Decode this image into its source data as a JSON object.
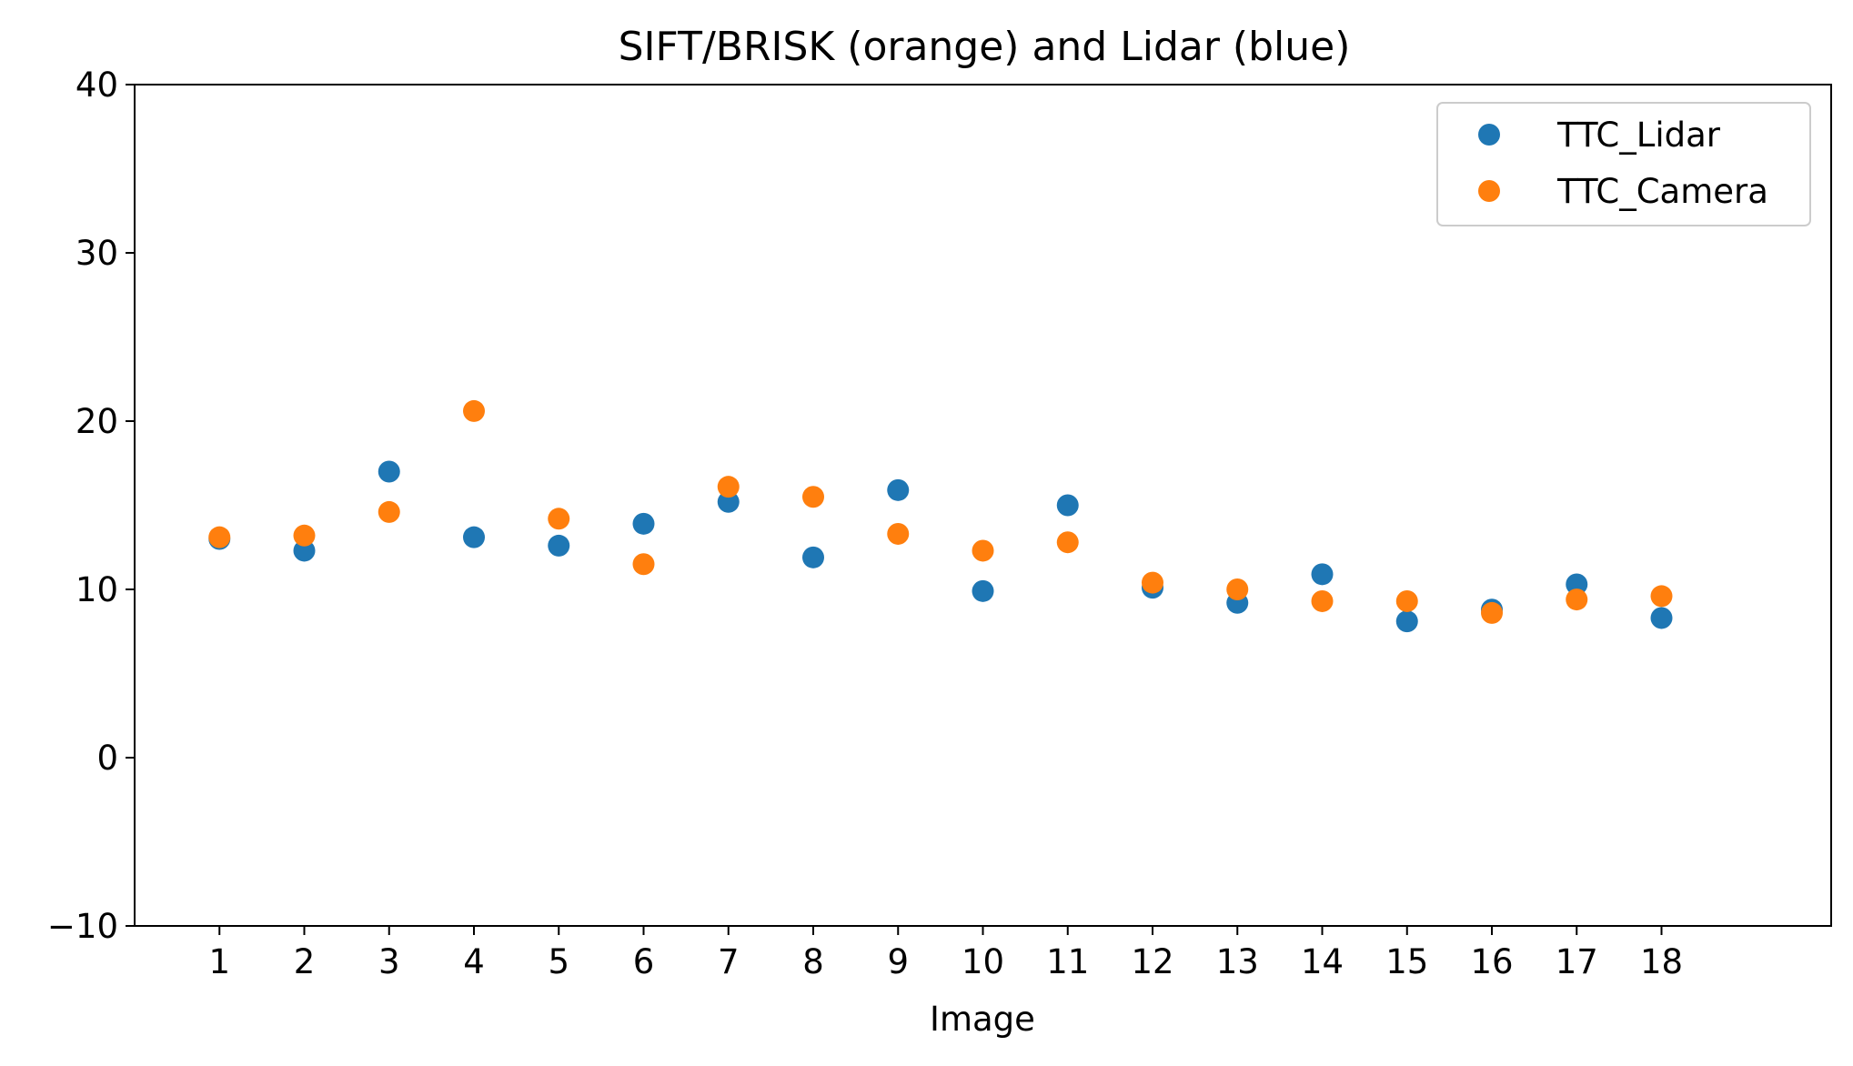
{
  "chart_data": {
    "type": "scatter",
    "title": "SIFT/BRISK (orange) and Lidar (blue)",
    "xlabel": "Image",
    "ylabel": "",
    "x": [
      1,
      2,
      3,
      4,
      5,
      6,
      7,
      8,
      9,
      10,
      11,
      12,
      13,
      14,
      15,
      16,
      17,
      18
    ],
    "xticks": [
      "1",
      "2",
      "3",
      "4",
      "5",
      "6",
      "7",
      "8",
      "9",
      "10",
      "11",
      "12",
      "13",
      "14",
      "15",
      "16",
      "17",
      "18"
    ],
    "yticks": [
      "−10",
      "0",
      "10",
      "20",
      "30",
      "40"
    ],
    "ylim": [
      -10,
      40
    ],
    "xlim": [
      0,
      20
    ],
    "grid": false,
    "legend_position": "top-right",
    "series": [
      {
        "name": "TTC_Lidar",
        "color": "#1f77b4",
        "values": [
          13.0,
          12.3,
          17.0,
          13.1,
          12.6,
          13.9,
          15.2,
          11.9,
          15.9,
          9.9,
          15.0,
          10.1,
          9.2,
          10.9,
          8.1,
          8.8,
          10.3,
          8.3
        ]
      },
      {
        "name": "TTC_Camera",
        "color": "#ff7f0e",
        "values": [
          13.1,
          13.2,
          14.6,
          20.6,
          14.2,
          11.5,
          16.1,
          15.5,
          13.3,
          12.3,
          12.8,
          10.4,
          10.0,
          9.3,
          9.3,
          8.6,
          9.4,
          9.6
        ]
      }
    ]
  }
}
